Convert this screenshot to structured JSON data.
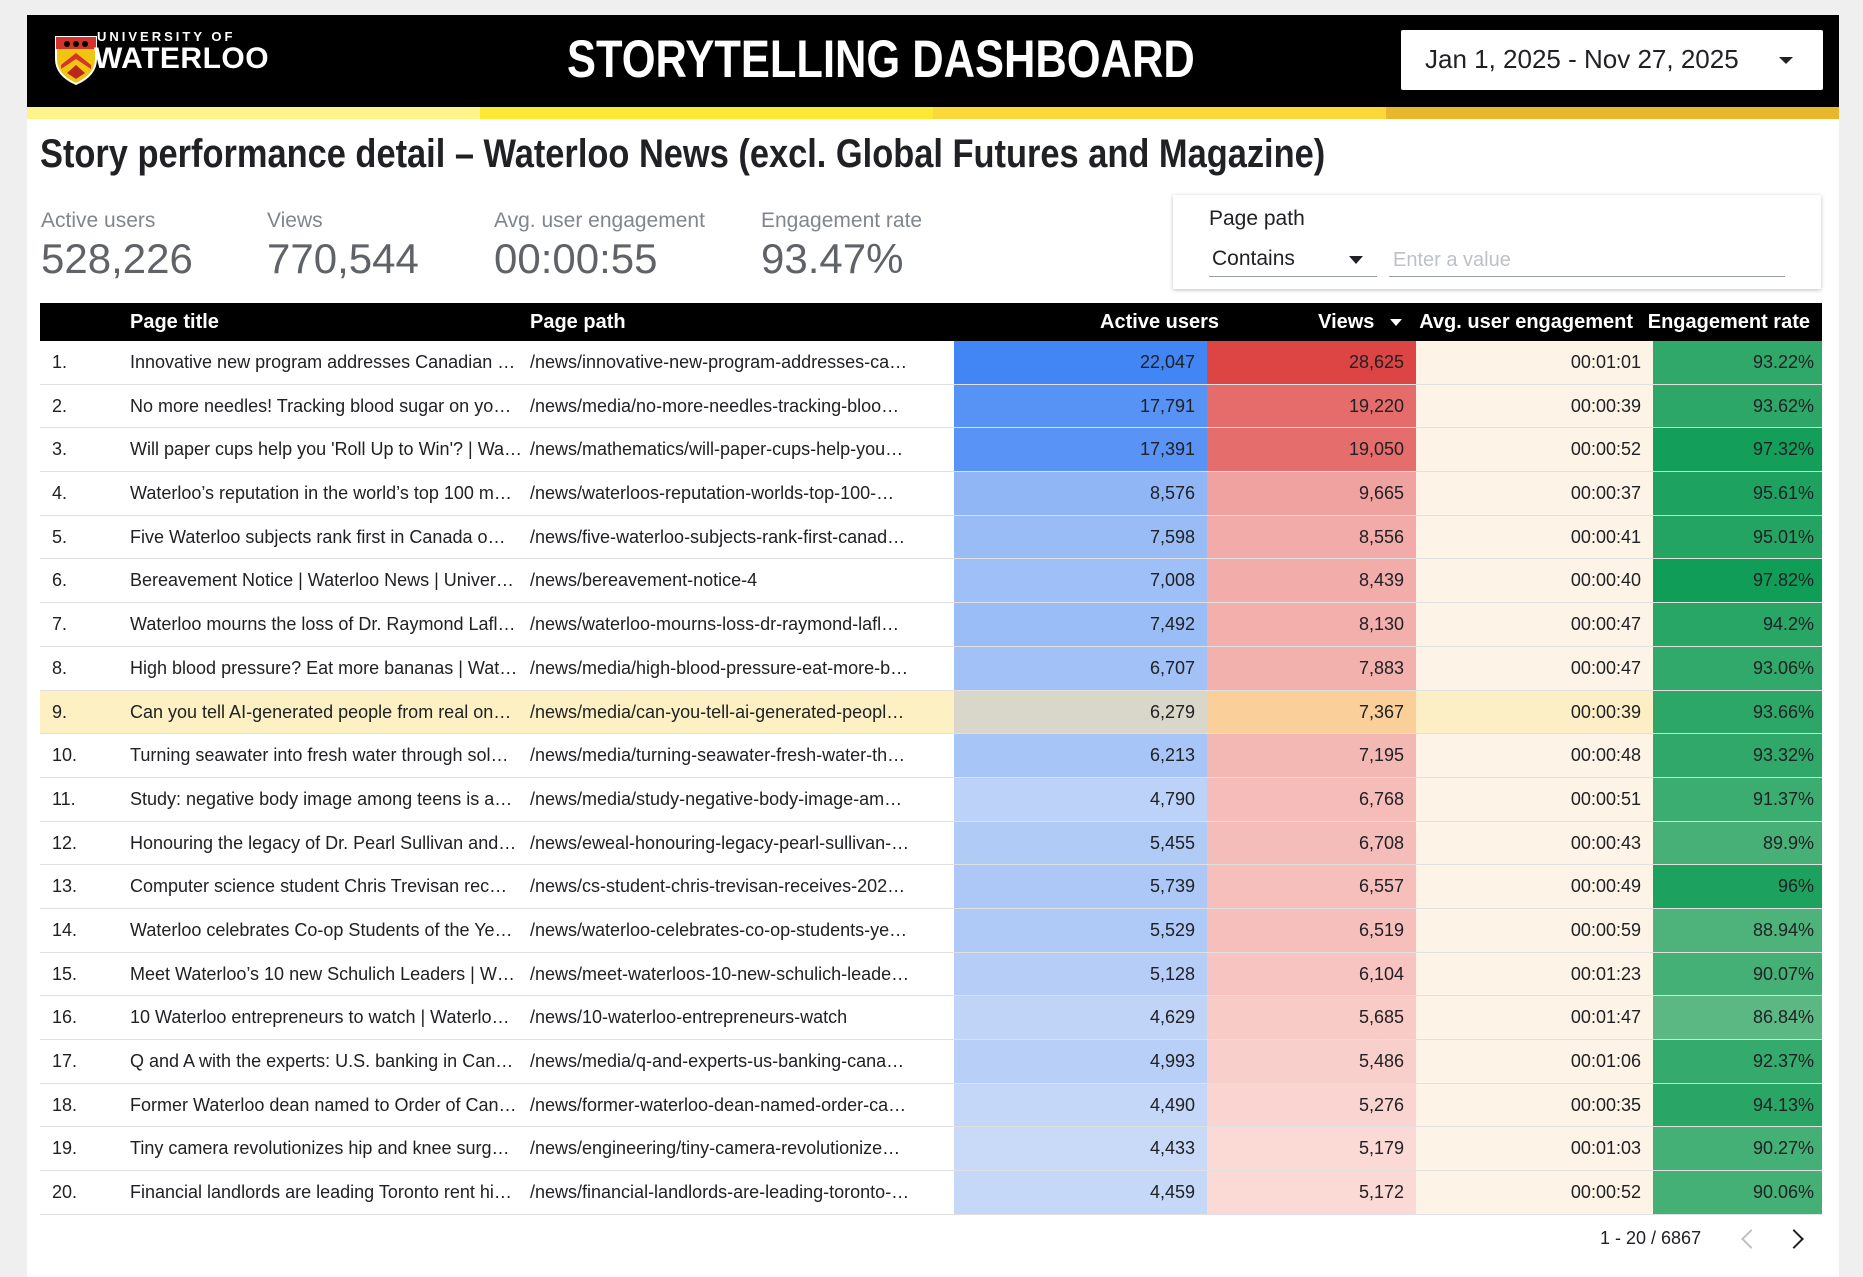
{
  "header": {
    "logo_line1": "UNIVERSITY OF",
    "logo_line2": "WATERLOO",
    "title": "STORYTELLING DASHBOARD",
    "date_range": "Jan 1, 2025 - Nov 27, 2025"
  },
  "subtitle": "Story performance detail – Waterloo News (excl. Global Futures and Magazine)",
  "scorecards": [
    {
      "label": "Active users",
      "value": "528,226"
    },
    {
      "label": "Views",
      "value": "770,544"
    },
    {
      "label": "Avg. user engagement",
      "value": "00:00:55"
    },
    {
      "label": "Engagement rate",
      "value": "93.47%"
    }
  ],
  "filter": {
    "label": "Page path",
    "operator": "Contains",
    "placeholder": "Enter a value"
  },
  "table": {
    "columns": [
      "Page title",
      "Page path",
      "Active users",
      "Views",
      "Avg. user engagement",
      "Engagement rate"
    ],
    "sort_column": "Views",
    "rows": [
      [
        "1.",
        "Innovative new program addresses Canadian …",
        "/news/innovative-new-program-addresses-ca…",
        "22,047",
        "28,625",
        "00:01:01",
        "93.22%"
      ],
      [
        "2.",
        "No more needles! Tracking blood sugar on yo…",
        "/news/media/no-more-needles-tracking-bloo…",
        "17,791",
        "19,220",
        "00:00:39",
        "93.62%"
      ],
      [
        "3.",
        "Will paper cups help you 'Roll Up to Win'? | Wa…",
        "/news/mathematics/will-paper-cups-help-you…",
        "17,391",
        "19,050",
        "00:00:52",
        "97.32%"
      ],
      [
        "4.",
        "Waterloo’s reputation in the world’s top 100 m…",
        "/news/waterloos-reputation-worlds-top-100-…",
        "8,576",
        "9,665",
        "00:00:37",
        "95.61%"
      ],
      [
        "5.",
        "Five Waterloo subjects rank first in Canada o…",
        "/news/five-waterloo-subjects-rank-first-canad…",
        "7,598",
        "8,556",
        "00:00:41",
        "95.01%"
      ],
      [
        "6.",
        "Bereavement Notice | Waterloo News | Univer…",
        "/news/bereavement-notice-4",
        "7,008",
        "8,439",
        "00:00:40",
        "97.82%"
      ],
      [
        "7.",
        "Waterloo mourns the loss of Dr. Raymond Lafl…",
        "/news/waterloo-mourns-loss-dr-raymond-lafl…",
        "7,492",
        "8,130",
        "00:00:47",
        "94.2%"
      ],
      [
        "8.",
        "High blood pressure? Eat more bananas | Wat…",
        "/news/media/high-blood-pressure-eat-more-b…",
        "6,707",
        "7,883",
        "00:00:47",
        "93.06%"
      ],
      [
        "9.",
        "Can you tell AI-generated people from real on…",
        "/news/media/can-you-tell-ai-generated-peopl…",
        "6,279",
        "7,367",
        "00:00:39",
        "93.66%"
      ],
      [
        "10.",
        "Turning seawater into fresh water through sol…",
        "/news/media/turning-seawater-fresh-water-th…",
        "6,213",
        "7,195",
        "00:00:48",
        "93.32%"
      ],
      [
        "11.",
        "Study: negative body image among teens is a…",
        "/news/media/study-negative-body-image-am…",
        "4,790",
        "6,768",
        "00:00:51",
        "91.37%"
      ],
      [
        "12.",
        "Honouring the legacy of Dr. Pearl Sullivan and…",
        "/news/eweal-honouring-legacy-pearl-sullivan-…",
        "5,455",
        "6,708",
        "00:00:43",
        "89.9%"
      ],
      [
        "13.",
        "Computer science student Chris Trevisan rec…",
        "/news/cs-student-chris-trevisan-receives-202…",
        "5,739",
        "6,557",
        "00:00:49",
        "96%"
      ],
      [
        "14.",
        "Waterloo celebrates Co-op Students of the Ye…",
        "/news/waterloo-celebrates-co-op-students-ye…",
        "5,529",
        "6,519",
        "00:00:59",
        "88.94%"
      ],
      [
        "15.",
        "Meet Waterloo’s 10 new Schulich Leaders | W…",
        "/news/meet-waterloos-10-new-schulich-leade…",
        "5,128",
        "6,104",
        "00:01:23",
        "90.07%"
      ],
      [
        "16.",
        "10 Waterloo entrepreneurs to watch | Waterlo…",
        "/news/10-waterloo-entrepreneurs-watch",
        "4,629",
        "5,685",
        "00:01:47",
        "86.84%"
      ],
      [
        "17.",
        "Q and A with the experts: U.S. banking in Can…",
        "/news/media/q-and-experts-us-banking-cana…",
        "4,993",
        "5,486",
        "00:01:06",
        "92.37%"
      ],
      [
        "18.",
        "Former Waterloo dean named to Order of Can…",
        "/news/former-waterloo-dean-named-order-ca…",
        "4,490",
        "5,276",
        "00:00:35",
        "94.13%"
      ],
      [
        "19.",
        "Tiny camera revolutionizes hip and knee surg…",
        "/news/engineering/tiny-camera-revolutionize…",
        "4,433",
        "5,179",
        "00:01:03",
        "90.27%"
      ],
      [
        "20.",
        "Financial landlords are leading Toronto rent hi…",
        "/news/financial-landlords-are-leading-toronto-…",
        "4,459",
        "5,172",
        "00:00:52",
        "90.06%"
      ]
    ],
    "highlighted_row": 9,
    "pagination": "1 - 20 / 6867"
  },
  "colors": {
    "header_bg": "#000000",
    "stripe": [
      "#fef48a",
      "#fde934",
      "#fbd83a",
      "#e9b72c"
    ],
    "users_max": "#4285f4",
    "users_min": "#c9daf8",
    "views_max": "#dd4444",
    "views_min": "#fbdad6",
    "eng_bg": "#fdf3e7",
    "rate_hi": "#0f9d58",
    "rate_lo": "#5cb882"
  },
  "icons": {
    "date_dropdown": "caret-down-icon",
    "filter_dropdown": "caret-down-icon",
    "sort": "sort-desc-icon",
    "prev": "chevron-left-icon",
    "next": "chevron-right-icon"
  }
}
